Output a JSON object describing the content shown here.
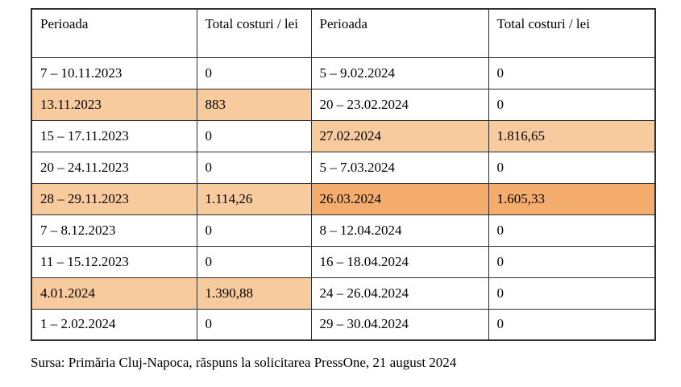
{
  "table": {
    "headers": [
      "Perioada",
      "Total costuri / lei",
      "Perioada",
      "Total costuri / lei"
    ],
    "rows": [
      {
        "cells": [
          "7 – 10.11.2023",
          "0",
          "5 – 9.02.2024",
          "0"
        ],
        "left_highlight": "none",
        "right_highlight": "none"
      },
      {
        "cells": [
          "13.11.2023",
          "883",
          "20 – 23.02.2024",
          "0"
        ],
        "left_highlight": "light",
        "right_highlight": "none"
      },
      {
        "cells": [
          "15 – 17.11.2023",
          "0",
          "27.02.2024",
          "1.816,65"
        ],
        "left_highlight": "none",
        "right_highlight": "light"
      },
      {
        "cells": [
          "20 – 24.11.2023",
          "0",
          "5 – 7.03.2024",
          "0"
        ],
        "left_highlight": "none",
        "right_highlight": "none"
      },
      {
        "cells": [
          "28 – 29.11.2023",
          "1.114,26",
          "26.03.2024",
          "1.605,33"
        ],
        "left_highlight": "light",
        "right_highlight": "dark"
      },
      {
        "cells": [
          "7 – 8.12.2023",
          "0",
          "8 – 12.04.2024",
          "0"
        ],
        "left_highlight": "none",
        "right_highlight": "none"
      },
      {
        "cells": [
          "11 – 15.12.2023",
          "0",
          "16 – 18.04.2024",
          "0"
        ],
        "left_highlight": "none",
        "right_highlight": "none"
      },
      {
        "cells": [
          "4.01.2024",
          "1.390,88",
          "24 – 26.04.2024",
          "0"
        ],
        "left_highlight": "light",
        "right_highlight": "none"
      },
      {
        "cells": [
          "1 – 2.02.2024",
          "0",
          "29 – 30.04.2024",
          "0"
        ],
        "left_highlight": "none",
        "right_highlight": "none"
      }
    ]
  },
  "source": "Sursa: Primăria Cluj-Napoca, răspuns la solicitarea PressOne, 21 august 2024",
  "colors": {
    "highlight_light": "#f8cb9e",
    "highlight_dark": "#f4ad6c",
    "border": "#2e2e2e",
    "text": "#000000",
    "background": "#ffffff"
  }
}
